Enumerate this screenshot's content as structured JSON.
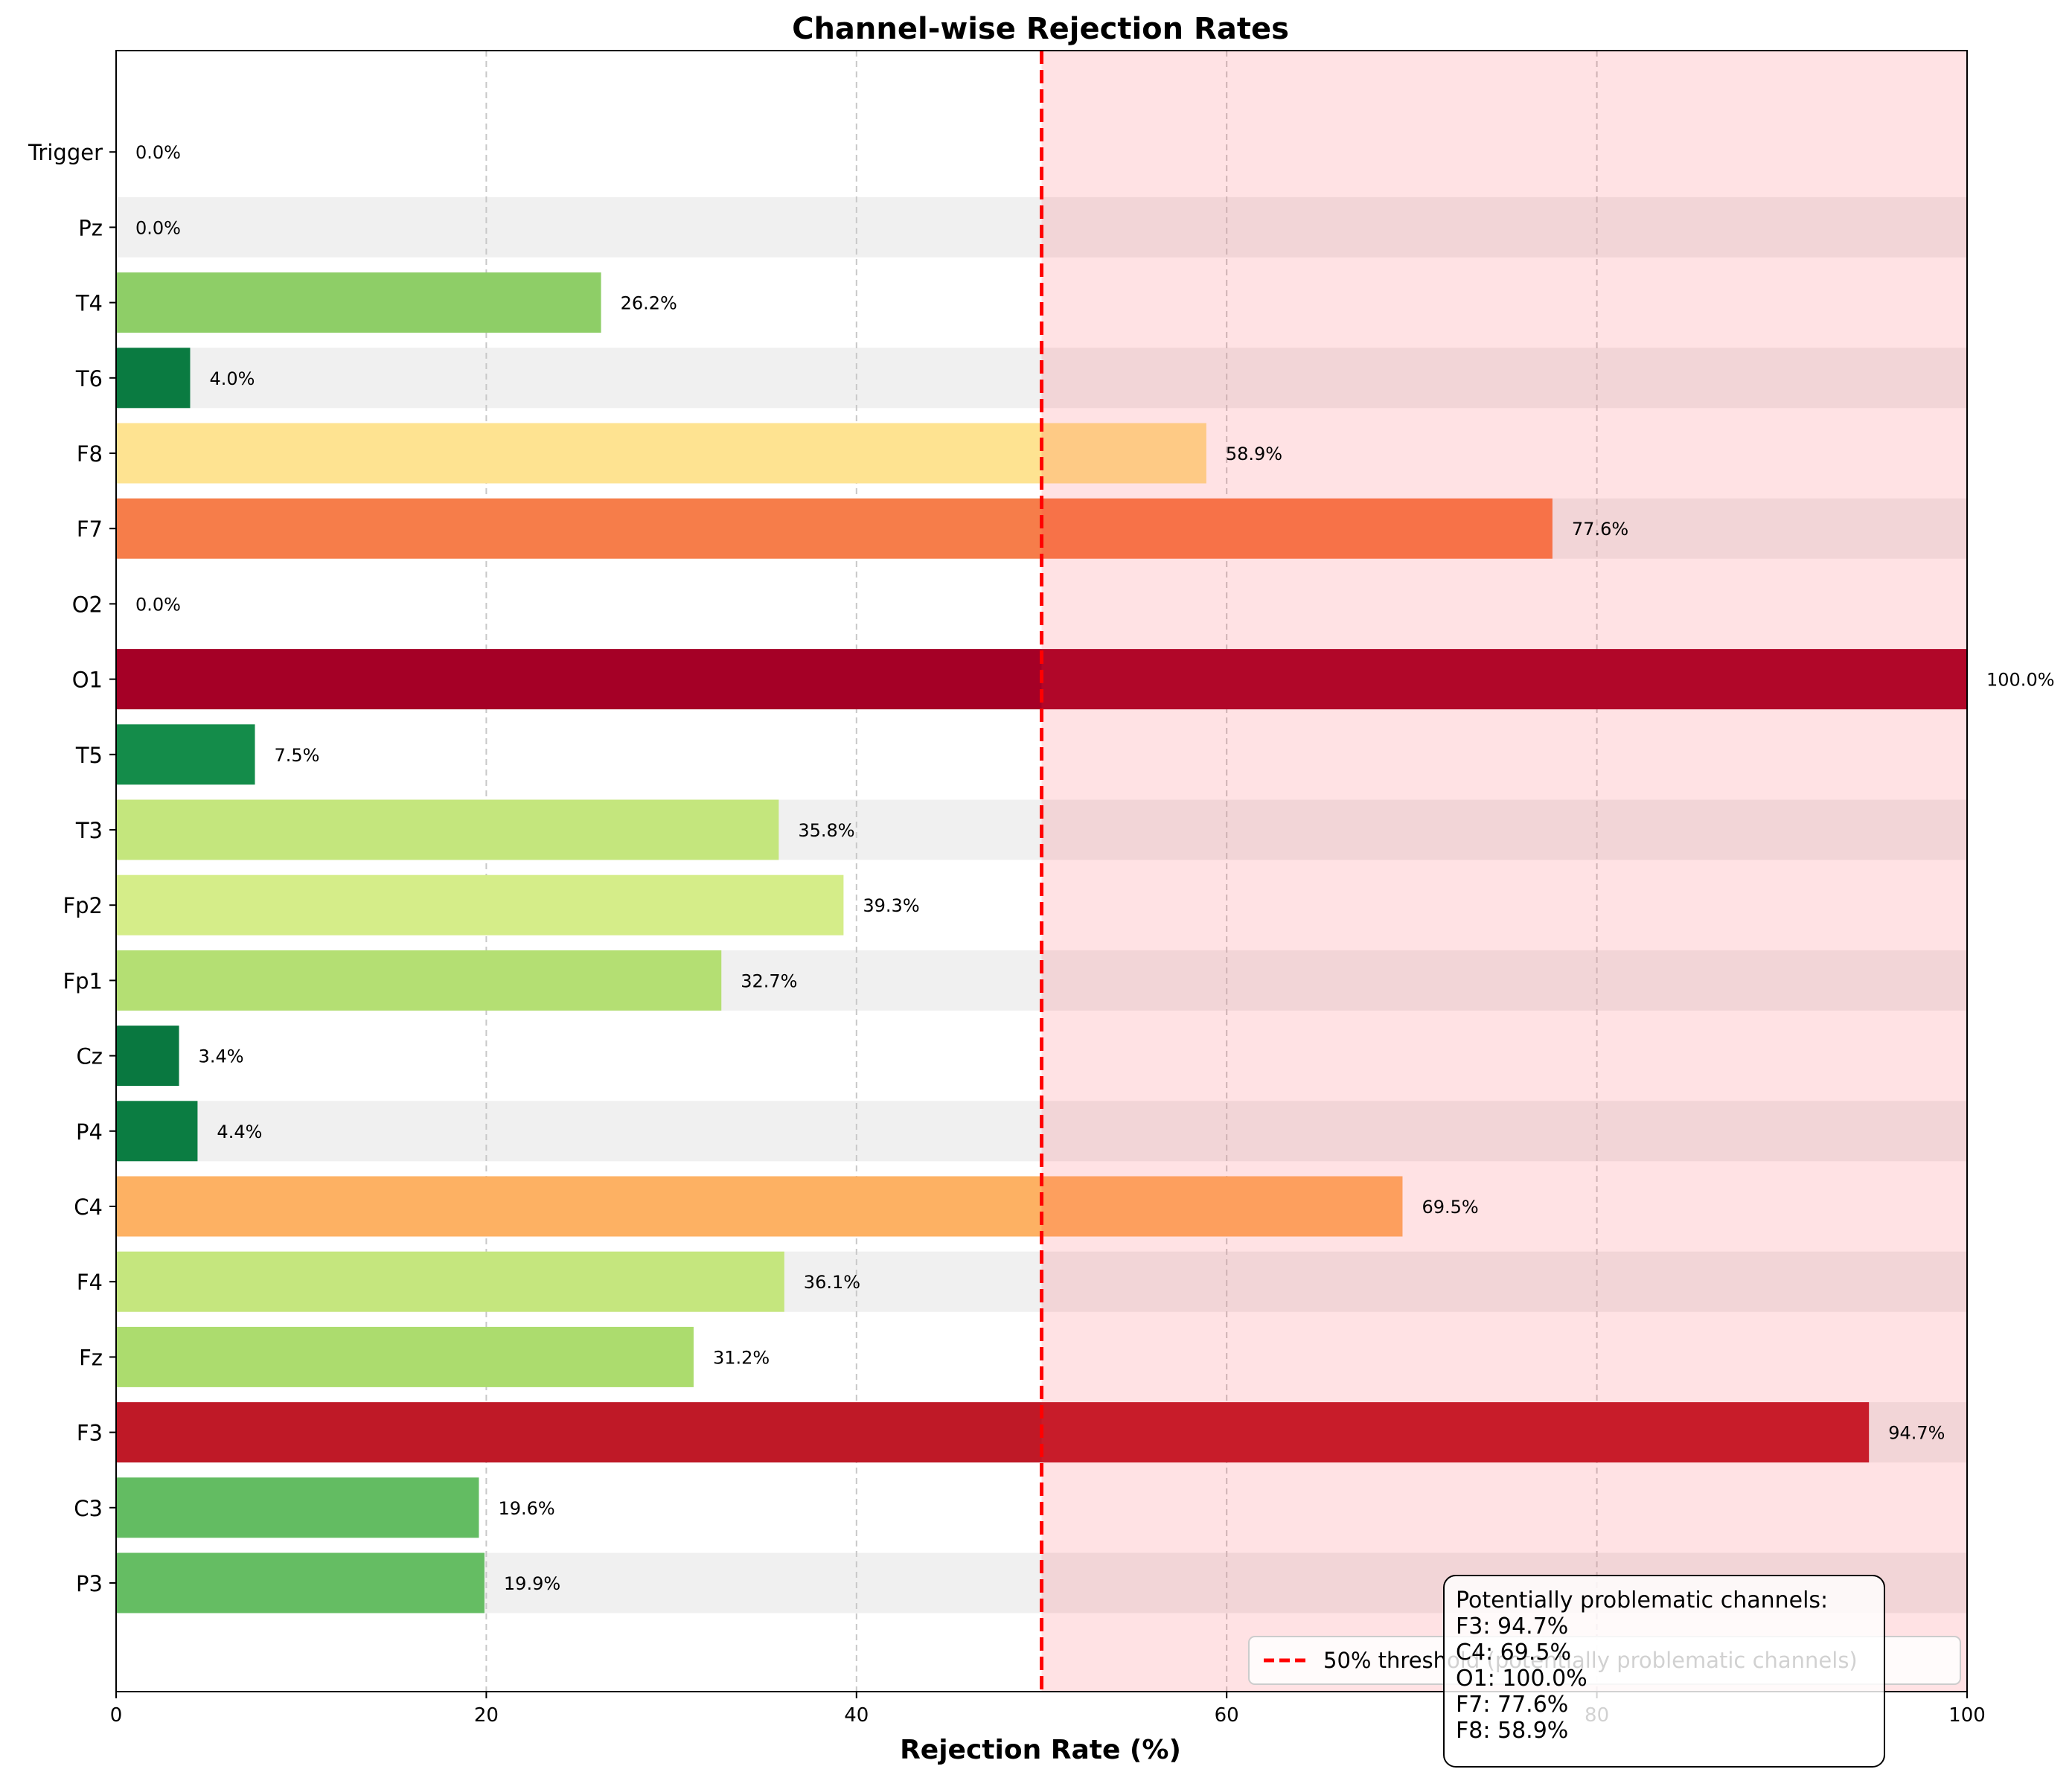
{
  "chart_data": {
    "type": "bar",
    "orientation": "horizontal",
    "title": "Channel-wise Rejection Rates",
    "xlabel": "Rejection Rate (%)",
    "ylabel": "",
    "xlim": [
      0,
      100
    ],
    "xticks": [
      0,
      20,
      40,
      60,
      80,
      100
    ],
    "grid": "x-dashed",
    "value_format": "%",
    "categories": [
      "P3",
      "C3",
      "F3",
      "Fz",
      "F4",
      "C4",
      "P4",
      "Cz",
      "Fp1",
      "Fp2",
      "T3",
      "T5",
      "O1",
      "O2",
      "F7",
      "F8",
      "T6",
      "T4",
      "Pz",
      "Trigger"
    ],
    "values": [
      19.9,
      19.6,
      94.7,
      31.2,
      36.1,
      69.5,
      4.4,
      3.4,
      32.7,
      39.3,
      35.8,
      7.5,
      100.0,
      0.0,
      77.6,
      58.9,
      4.0,
      26.2,
      0.0,
      0.0
    ],
    "colormap": "RdYlGn_r",
    "threshold": {
      "value": 50,
      "label": "50% threshold (potentially problematic channels)",
      "color": "#ff0000",
      "style": "dashed",
      "shaded_region_color": "#ffe1e3"
    },
    "alternating_row_shading": "#f0f0f0",
    "legend_position": "lower-right",
    "annotation": {
      "title": "Potentially problematic channels:",
      "lines": [
        "F3: 94.7%",
        "C4: 69.5%",
        "O1: 100.0%",
        "F7: 77.6%",
        "F8: 58.9%"
      ],
      "position": "bottom-right"
    }
  }
}
